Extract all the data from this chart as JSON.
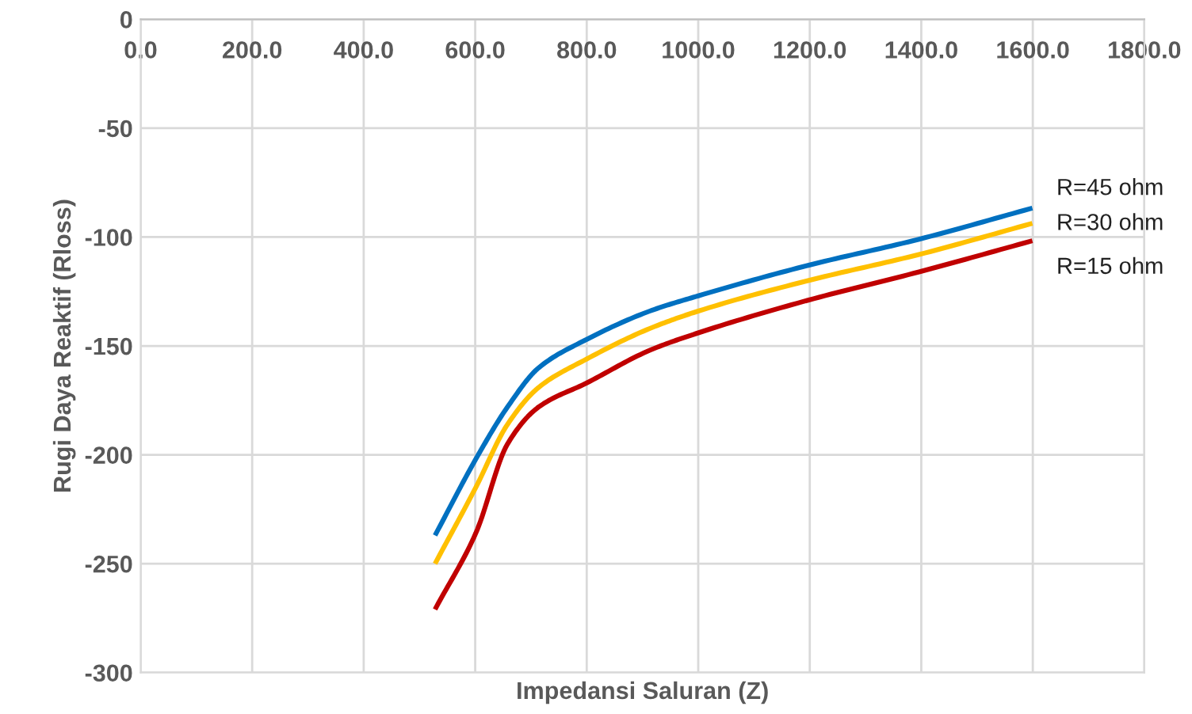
{
  "chart_data": {
    "type": "line",
    "xlabel": "Impedansi Saluran (Z)",
    "ylabel": "Rugi Daya Reaktif (Rloss)",
    "xlim": [
      0,
      1800
    ],
    "ylim": [
      -300,
      0
    ],
    "xticks": [
      {
        "value": 0,
        "label": "0.0"
      },
      {
        "value": 200,
        "label": "200.0"
      },
      {
        "value": 400,
        "label": "400.0"
      },
      {
        "value": 600,
        "label": "600.0"
      },
      {
        "value": 800,
        "label": "800.0"
      },
      {
        "value": 1000,
        "label": "1000.0"
      },
      {
        "value": 1200,
        "label": "1200.0"
      },
      {
        "value": 1400,
        "label": "1400.0"
      },
      {
        "value": 1600,
        "label": "1600.0"
      },
      {
        "value": 1800,
        "label": "1800.0"
      }
    ],
    "yticks": [
      0,
      -50,
      -100,
      -150,
      -200,
      -250,
      -300
    ],
    "grid": true,
    "legend": false,
    "marker": "none",
    "line_style": "solid",
    "series": [
      {
        "name": "R=45 ohm",
        "color": "#0070c0",
        "x": [
          530,
          601,
          658,
          714,
          800,
          913,
          1000,
          1197,
          1396,
          1595
        ],
        "values": [
          -236,
          -202,
          -178,
          -160,
          -147,
          -134,
          -127,
          -113,
          -101,
          -87
        ]
      },
      {
        "name": "R=30 ohm",
        "color": "#ffc000",
        "x": [
          530,
          601,
          658,
          714,
          800,
          913,
          1000,
          1197,
          1396,
          1595
        ],
        "values": [
          -249,
          -215,
          -186,
          -169,
          -156,
          -142,
          -134,
          -120,
          -108,
          -94
        ]
      },
      {
        "name": "R=15 ohm",
        "color": "#c00000",
        "x": [
          530,
          601,
          658,
          714,
          800,
          913,
          1000,
          1197,
          1396,
          1595
        ],
        "values": [
          -270,
          -236,
          -195,
          -178,
          -167,
          -152,
          -144,
          -129,
          -116,
          -102
        ]
      }
    ]
  }
}
